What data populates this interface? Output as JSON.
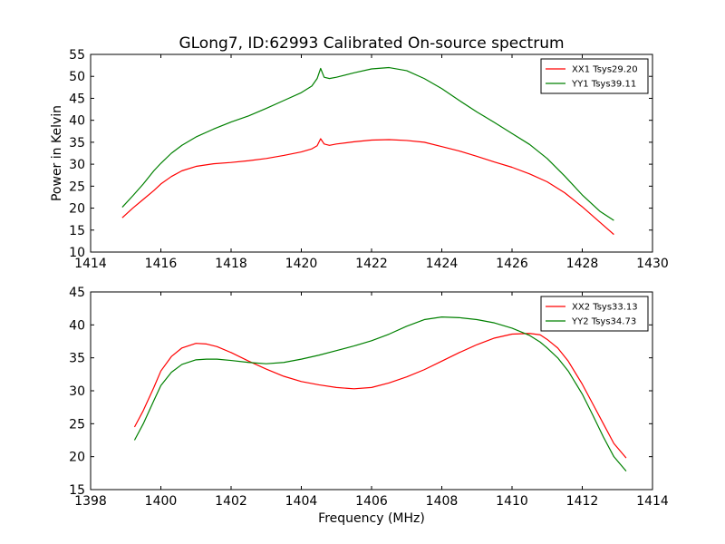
{
  "figure": {
    "title": "GLong7, ID:62993 Calibrated On-source spectrum"
  },
  "chart_data": [
    {
      "type": "line",
      "title": "GLong7, ID:62993 Calibrated On-source spectrum",
      "xlabel": "",
      "ylabel": "Power in Kelvin",
      "xlim": [
        1414,
        1430
      ],
      "ylim": [
        10,
        55
      ],
      "xticks": [
        1414,
        1416,
        1418,
        1420,
        1422,
        1424,
        1426,
        1428,
        1430
      ],
      "yticks": [
        10,
        15,
        20,
        25,
        30,
        35,
        40,
        45,
        50,
        55
      ],
      "grid": false,
      "legend_position": "top-right",
      "series": [
        {
          "name": "XX1 Tsys29.20",
          "color": "#ff0000",
          "x": [
            1414.9,
            1415.2,
            1415.5,
            1415.8,
            1416.0,
            1416.3,
            1416.6,
            1417.0,
            1417.5,
            1418.0,
            1418.5,
            1419.0,
            1419.5,
            1420.0,
            1420.3,
            1420.45,
            1420.55,
            1420.65,
            1420.8,
            1421.0,
            1421.5,
            1422.0,
            1422.5,
            1423.0,
            1423.5,
            1424.0,
            1424.5,
            1425.0,
            1425.5,
            1426.0,
            1426.5,
            1427.0,
            1427.5,
            1428.0,
            1428.5,
            1428.9
          ],
          "y": [
            17.8,
            20.0,
            22.0,
            24.0,
            25.5,
            27.2,
            28.5,
            29.5,
            30.1,
            30.4,
            30.8,
            31.3,
            32.0,
            32.8,
            33.5,
            34.2,
            35.8,
            34.6,
            34.3,
            34.6,
            35.1,
            35.5,
            35.6,
            35.4,
            35.0,
            34.0,
            33.0,
            31.8,
            30.5,
            29.3,
            27.8,
            26.0,
            23.5,
            20.3,
            16.8,
            14.0
          ]
        },
        {
          "name": "YY1 Tsys39.11",
          "color": "#008000",
          "x": [
            1414.9,
            1415.2,
            1415.5,
            1415.8,
            1416.0,
            1416.3,
            1416.6,
            1417.0,
            1417.5,
            1418.0,
            1418.5,
            1419.0,
            1419.5,
            1420.0,
            1420.3,
            1420.45,
            1420.55,
            1420.65,
            1420.8,
            1421.0,
            1421.5,
            1422.0,
            1422.5,
            1423.0,
            1423.5,
            1424.0,
            1424.5,
            1425.0,
            1425.5,
            1426.0,
            1426.5,
            1427.0,
            1427.5,
            1428.0,
            1428.5,
            1428.9
          ],
          "y": [
            20.2,
            22.8,
            25.5,
            28.5,
            30.2,
            32.5,
            34.3,
            36.2,
            38.0,
            39.6,
            41.0,
            42.7,
            44.5,
            46.3,
            47.8,
            49.5,
            51.8,
            49.8,
            49.5,
            49.8,
            50.8,
            51.7,
            52.0,
            51.3,
            49.5,
            47.2,
            44.5,
            41.9,
            39.5,
            37.0,
            34.5,
            31.3,
            27.3,
            23.0,
            19.3,
            17.2
          ]
        }
      ]
    },
    {
      "type": "line",
      "title": "",
      "xlabel": "Frequency (MHz)",
      "ylabel": "",
      "xlim": [
        1398,
        1414
      ],
      "ylim": [
        15,
        45
      ],
      "xticks": [
        1398,
        1400,
        1402,
        1404,
        1406,
        1408,
        1410,
        1412,
        1414
      ],
      "yticks": [
        15,
        20,
        25,
        30,
        35,
        40,
        45
      ],
      "grid": false,
      "legend_position": "top-right",
      "series": [
        {
          "name": "XX2 Tsys33.13",
          "color": "#ff0000",
          "x": [
            1399.25,
            1399.5,
            1399.8,
            1400.0,
            1400.3,
            1400.6,
            1401.0,
            1401.3,
            1401.6,
            1402.0,
            1402.5,
            1403.0,
            1403.5,
            1404.0,
            1404.5,
            1405.0,
            1405.5,
            1406.0,
            1406.5,
            1407.0,
            1407.5,
            1408.0,
            1408.5,
            1409.0,
            1409.5,
            1410.0,
            1410.5,
            1410.8,
            1411.0,
            1411.3,
            1411.6,
            1412.0,
            1412.3,
            1412.6,
            1412.9,
            1413.25
          ],
          "y": [
            24.5,
            27.0,
            30.5,
            33.0,
            35.2,
            36.5,
            37.2,
            37.1,
            36.7,
            35.8,
            34.5,
            33.3,
            32.2,
            31.4,
            30.9,
            30.5,
            30.3,
            30.5,
            31.2,
            32.1,
            33.2,
            34.5,
            35.8,
            37.0,
            38.0,
            38.6,
            38.7,
            38.5,
            37.8,
            36.5,
            34.5,
            31.0,
            28.0,
            25.0,
            22.0,
            19.8
          ]
        },
        {
          "name": "YY2 Tsys34.73",
          "color": "#008000",
          "x": [
            1399.25,
            1399.5,
            1399.8,
            1400.0,
            1400.3,
            1400.6,
            1401.0,
            1401.3,
            1401.6,
            1402.0,
            1402.5,
            1403.0,
            1403.5,
            1404.0,
            1404.5,
            1405.0,
            1405.5,
            1406.0,
            1406.5,
            1407.0,
            1407.5,
            1408.0,
            1408.5,
            1409.0,
            1409.5,
            1410.0,
            1410.5,
            1410.8,
            1411.0,
            1411.3,
            1411.6,
            1412.0,
            1412.3,
            1412.6,
            1412.9,
            1413.25
          ],
          "y": [
            22.5,
            25.0,
            28.5,
            30.8,
            32.8,
            34.0,
            34.7,
            34.8,
            34.8,
            34.6,
            34.3,
            34.1,
            34.3,
            34.8,
            35.4,
            36.1,
            36.8,
            37.6,
            38.6,
            39.8,
            40.8,
            41.2,
            41.1,
            40.8,
            40.3,
            39.5,
            38.4,
            37.4,
            36.5,
            35.0,
            33.0,
            29.5,
            26.3,
            23.0,
            20.0,
            17.8
          ]
        }
      ]
    }
  ]
}
